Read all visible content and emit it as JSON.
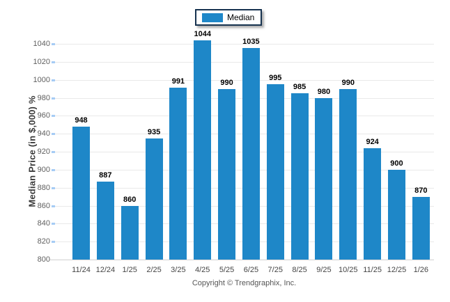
{
  "chart_data": {
    "type": "bar",
    "title": "",
    "categories": [
      "11/24",
      "12/24",
      "1/25",
      "2/25",
      "3/25",
      "4/25",
      "5/25",
      "6/25",
      "7/25",
      "8/25",
      "9/25",
      "10/25",
      "11/25",
      "12/25",
      "1/26"
    ],
    "series": [
      {
        "name": "Median",
        "values": [
          948,
          887,
          860,
          935,
          991,
          1044,
          990,
          1035,
          995,
          985,
          980,
          990,
          924,
          900,
          870
        ]
      }
    ],
    "xlabel": "",
    "ylabel": "Median Price (in $,000) %",
    "ylim": [
      800,
      1040
    ],
    "y_ticks": [
      800,
      820,
      840,
      860,
      880,
      900,
      920,
      940,
      960,
      980,
      1000,
      1020,
      1040
    ],
    "grid": true,
    "legend_position": "top-center",
    "bar_color": "#1e87c8",
    "gridline_color": "#e9e9e9",
    "axis_tick_color": "#a6ccf5"
  },
  "legend": {
    "items": [
      {
        "label": "Median",
        "color": "#1e87c8"
      }
    ]
  },
  "footer": {
    "copyright": "Copyright © Trendgraphix, Inc."
  }
}
